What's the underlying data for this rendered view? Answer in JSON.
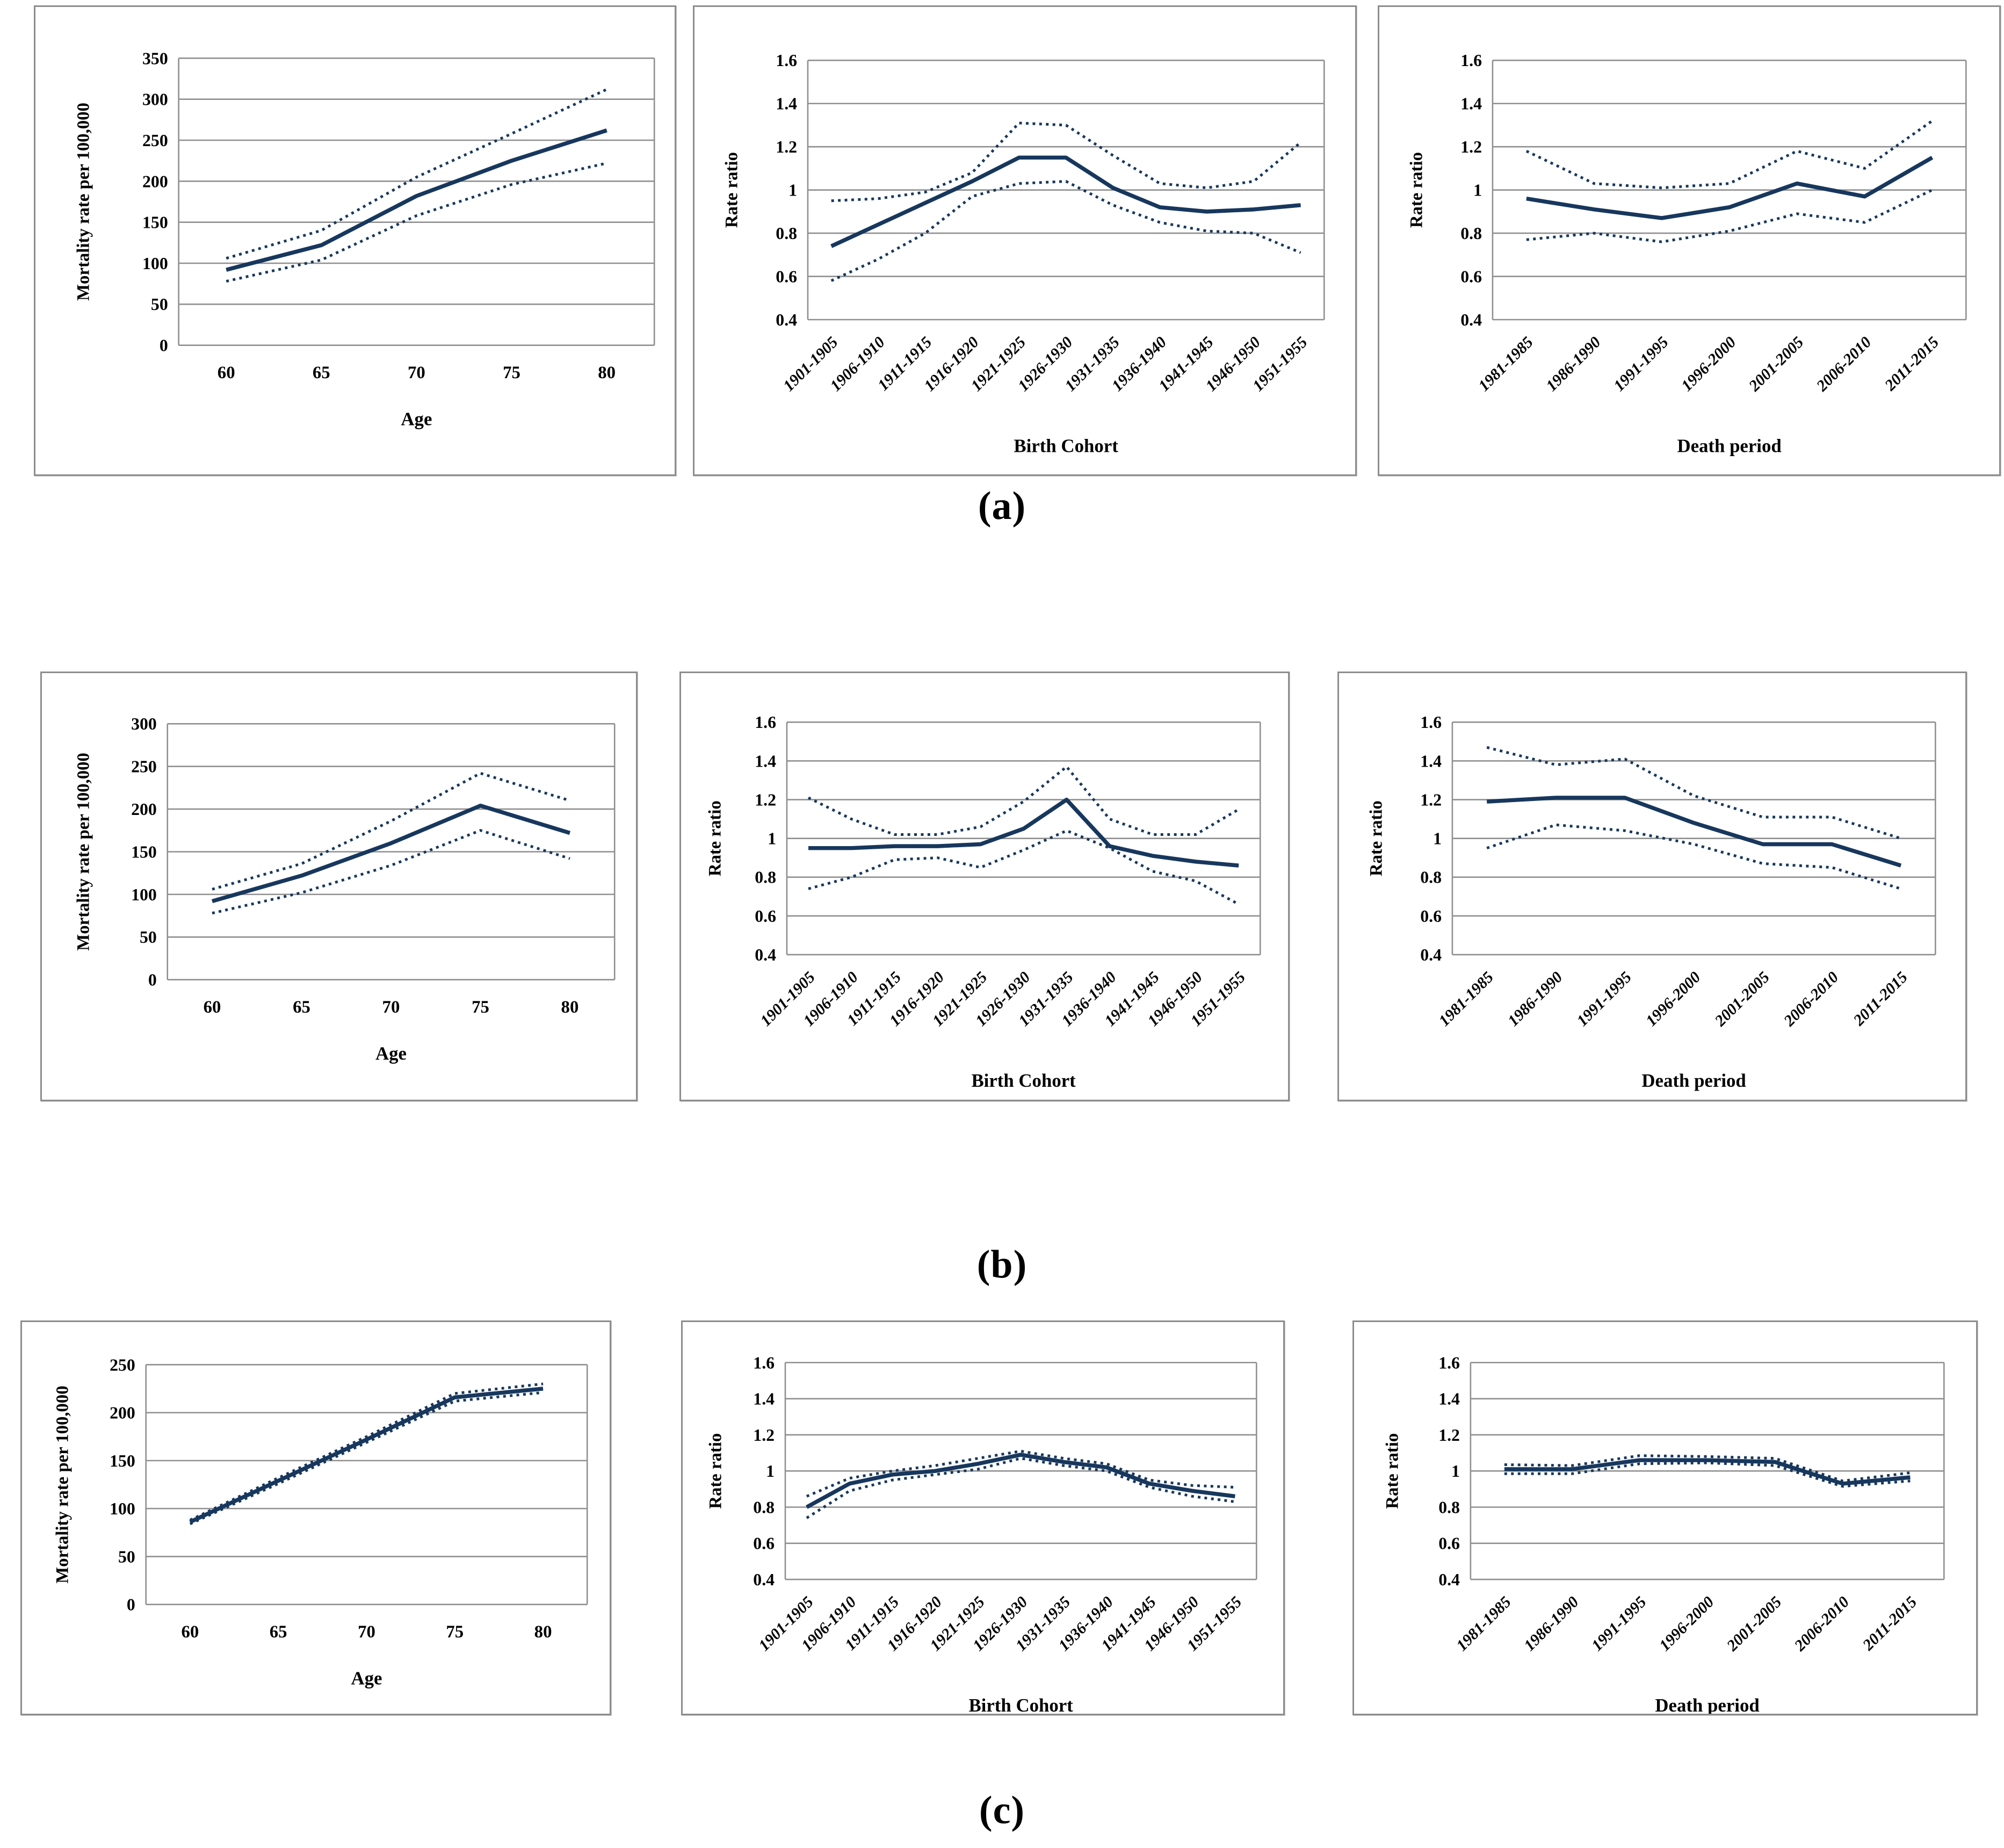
{
  "figure": {
    "row_labels": [
      "(a)",
      "(b)",
      "(c)"
    ],
    "colors": {
      "line": "#17375D",
      "grid": "#8f8f8f",
      "panel_border": "#8d8d8d",
      "text": "#000000",
      "background": "#ffffff"
    }
  },
  "chart_data": [
    {
      "id": "a-age",
      "type": "line",
      "row": "a",
      "xlabel": "Age",
      "ylabel": "Mortality rate per 100,000",
      "x_type": "numeric",
      "x": [
        "60",
        "65",
        "70",
        "75",
        "80"
      ],
      "ylim": [
        0,
        350
      ],
      "ystep": 50,
      "grid": "horizontal",
      "legend": "none",
      "series": [
        {
          "name": "estimate",
          "style": "solid",
          "values": [
            92,
            122,
            182,
            225,
            262
          ]
        },
        {
          "name": "upper-ci",
          "style": "dotted",
          "values": [
            106,
            140,
            205,
            258,
            312
          ]
        },
        {
          "name": "lower-ci",
          "style": "dotted",
          "values": [
            78,
            104,
            158,
            196,
            222
          ]
        }
      ]
    },
    {
      "id": "a-birth-cohort",
      "type": "line",
      "row": "a",
      "xlabel": "Birth  Cohort",
      "ylabel": "Rate ratio",
      "x_type": "category",
      "x": [
        "1901-1905",
        "1906-1910",
        "1911-1915",
        "1916-1920",
        "1921-1925",
        "1926-1930",
        "1931-1935",
        "1936-1940",
        "1941-1945",
        "1946-1950",
        "1951-1955"
      ],
      "ylim": [
        0.4,
        1.6
      ],
      "ystep": 0.2,
      "grid": "horizontal",
      "legend": "none",
      "series": [
        {
          "name": "estimate",
          "style": "solid",
          "values": [
            0.74,
            0.84,
            0.94,
            1.04,
            1.15,
            1.15,
            1.01,
            0.92,
            0.9,
            0.91,
            0.93
          ]
        },
        {
          "name": "upper-ci",
          "style": "dotted",
          "values": [
            0.95,
            0.96,
            0.99,
            1.08,
            1.31,
            1.3,
            1.16,
            1.03,
            1.01,
            1.04,
            1.22
          ]
        },
        {
          "name": "lower-ci",
          "style": "dotted",
          "values": [
            0.58,
            0.68,
            0.8,
            0.97,
            1.03,
            1.04,
            0.93,
            0.85,
            0.81,
            0.8,
            0.71
          ]
        }
      ]
    },
    {
      "id": "a-death-period",
      "type": "line",
      "row": "a",
      "xlabel": "Death period",
      "ylabel": "Rate ratio",
      "x_type": "category",
      "x": [
        "1981-1985",
        "1986-1990",
        "1991-1995",
        "1996-2000",
        "2001-2005",
        "2006-2010",
        "2011-2015"
      ],
      "ylim": [
        0.4,
        1.6
      ],
      "ystep": 0.2,
      "grid": "horizontal",
      "legend": "none",
      "series": [
        {
          "name": "estimate",
          "style": "solid",
          "values": [
            0.96,
            0.91,
            0.87,
            0.92,
            1.03,
            0.97,
            1.15
          ]
        },
        {
          "name": "upper-ci",
          "style": "dotted",
          "values": [
            1.18,
            1.03,
            1.01,
            1.03,
            1.18,
            1.1,
            1.32
          ]
        },
        {
          "name": "lower-ci",
          "style": "dotted",
          "values": [
            0.77,
            0.8,
            0.76,
            0.81,
            0.89,
            0.85,
            1.0
          ]
        }
      ]
    },
    {
      "id": "b-age",
      "type": "line",
      "row": "b",
      "xlabel": "Age",
      "ylabel": "Mortality rate per 100,000",
      "x_type": "numeric",
      "x": [
        "60",
        "65",
        "70",
        "75",
        "80"
      ],
      "ylim": [
        0,
        300
      ],
      "ystep": 50,
      "grid": "horizontal",
      "legend": "none",
      "series": [
        {
          "name": "estimate",
          "style": "solid",
          "values": [
            92,
            122,
            160,
            204,
            172
          ]
        },
        {
          "name": "upper-ci",
          "style": "dotted",
          "values": [
            106,
            136,
            186,
            242,
            210
          ]
        },
        {
          "name": "lower-ci",
          "style": "dotted",
          "values": [
            78,
            102,
            134,
            175,
            142
          ]
        }
      ]
    },
    {
      "id": "b-birth-cohort",
      "type": "line",
      "row": "b",
      "xlabel": "Birth  Cohort",
      "ylabel": "Rate ratio",
      "x_type": "category",
      "x": [
        "1901-1905",
        "1906-1910",
        "1911-1915",
        "1916-1920",
        "1921-1925",
        "1926-1930",
        "1931-1935",
        "1936-1940",
        "1941-1945",
        "1946-1950",
        "1951-1955"
      ],
      "ylim": [
        0.4,
        1.6
      ],
      "ystep": 0.2,
      "grid": "horizontal",
      "legend": "none",
      "series": [
        {
          "name": "estimate",
          "style": "solid",
          "values": [
            0.95,
            0.95,
            0.96,
            0.96,
            0.97,
            1.05,
            1.2,
            0.96,
            0.91,
            0.88,
            0.86
          ]
        },
        {
          "name": "upper-ci",
          "style": "dotted",
          "values": [
            1.21,
            1.1,
            1.02,
            1.02,
            1.06,
            1.19,
            1.37,
            1.1,
            1.02,
            1.02,
            1.15
          ]
        },
        {
          "name": "lower-ci",
          "style": "dotted",
          "values": [
            0.74,
            0.8,
            0.89,
            0.9,
            0.85,
            0.94,
            1.04,
            0.95,
            0.83,
            0.78,
            0.66
          ]
        }
      ]
    },
    {
      "id": "b-death-period",
      "type": "line",
      "row": "b",
      "xlabel": "Death period",
      "ylabel": "Rate ratio",
      "x_type": "category",
      "x": [
        "1981-1985",
        "1986-1990",
        "1991-1995",
        "1996-2000",
        "2001-2005",
        "2006-2010",
        "2011-2015"
      ],
      "ylim": [
        0.4,
        1.6
      ],
      "ystep": 0.2,
      "grid": "horizontal",
      "legend": "none",
      "series": [
        {
          "name": "estimate",
          "style": "solid",
          "values": [
            1.19,
            1.21,
            1.21,
            1.08,
            0.97,
            0.97,
            0.86
          ]
        },
        {
          "name": "upper-ci",
          "style": "dotted",
          "values": [
            1.47,
            1.38,
            1.41,
            1.22,
            1.11,
            1.11,
            1.0
          ]
        },
        {
          "name": "lower-ci",
          "style": "dotted",
          "values": [
            0.95,
            1.07,
            1.04,
            0.97,
            0.87,
            0.85,
            0.74
          ]
        }
      ]
    },
    {
      "id": "c-age",
      "type": "line",
      "row": "c",
      "xlabel": "Age",
      "ylabel": "Mortality rate per 100,000",
      "x_type": "numeric",
      "x": [
        "60",
        "65",
        "70",
        "75",
        "80"
      ],
      "ylim": [
        0,
        250
      ],
      "ystep": 50,
      "grid": "horizontal",
      "legend": "none",
      "series": [
        {
          "name": "estimate",
          "style": "solid",
          "values": [
            86,
            129,
            172,
            216,
            225
          ]
        },
        {
          "name": "upper-ci",
          "style": "dotted",
          "values": [
            88,
            132,
            175,
            220,
            230
          ]
        },
        {
          "name": "lower-ci",
          "style": "dotted",
          "values": [
            84,
            126,
            169,
            212,
            221
          ]
        }
      ]
    },
    {
      "id": "c-birth-cohort",
      "type": "line",
      "row": "c",
      "xlabel": "Birth  Cohort",
      "ylabel": "Rate ratio",
      "x_type": "category",
      "x": [
        "1901-1905",
        "1906-1910",
        "1911-1915",
        "1916-1920",
        "1921-1925",
        "1926-1930",
        "1931-1935",
        "1936-1940",
        "1941-1945",
        "1946-1950",
        "1951-1955"
      ],
      "ylim": [
        0.4,
        1.6
      ],
      "ystep": 0.2,
      "grid": "horizontal",
      "legend": "none",
      "series": [
        {
          "name": "estimate",
          "style": "solid",
          "values": [
            0.8,
            0.93,
            0.98,
            1.0,
            1.04,
            1.09,
            1.05,
            1.02,
            0.93,
            0.89,
            0.86
          ]
        },
        {
          "name": "upper-ci",
          "style": "dotted",
          "values": [
            0.86,
            0.96,
            1.0,
            1.03,
            1.07,
            1.11,
            1.07,
            1.04,
            0.95,
            0.92,
            0.91
          ]
        },
        {
          "name": "lower-ci",
          "style": "dotted",
          "values": [
            0.74,
            0.89,
            0.95,
            0.98,
            1.01,
            1.07,
            1.03,
            1.0,
            0.91,
            0.86,
            0.83
          ]
        }
      ]
    },
    {
      "id": "c-death-period",
      "type": "line",
      "row": "c",
      "xlabel": "Death period",
      "ylabel": "Rate ratio",
      "x_type": "category",
      "x": [
        "1981-1985",
        "1986-1990",
        "1991-1995",
        "1996-2000",
        "2001-2005",
        "2006-2010",
        "2011-2015"
      ],
      "ylim": [
        0.4,
        1.6
      ],
      "ystep": 0.2,
      "grid": "horizontal",
      "legend": "none",
      "series": [
        {
          "name": "estimate",
          "style": "solid",
          "values": [
            1.01,
            1.01,
            1.06,
            1.06,
            1.05,
            0.93,
            0.965
          ]
        },
        {
          "name": "upper-ci",
          "style": "dotted",
          "values": [
            1.035,
            1.03,
            1.085,
            1.08,
            1.07,
            0.945,
            0.99
          ]
        },
        {
          "name": "lower-ci",
          "style": "dotted",
          "values": [
            0.985,
            0.985,
            1.04,
            1.045,
            1.03,
            0.915,
            0.945
          ]
        }
      ]
    }
  ]
}
